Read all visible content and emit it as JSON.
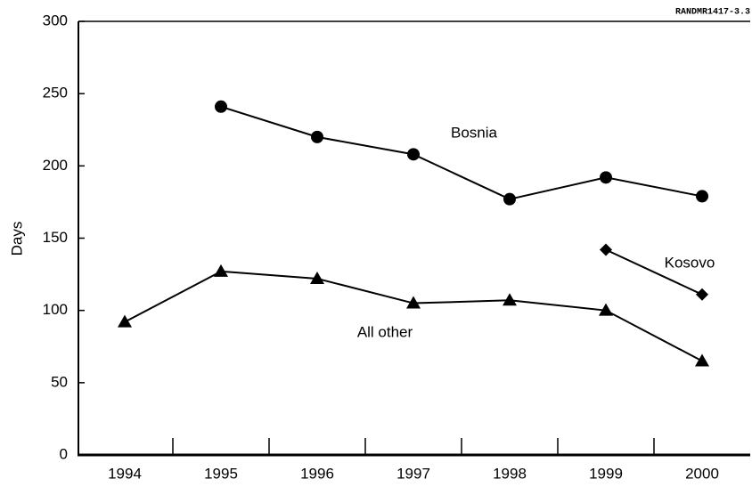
{
  "chart_data": {
    "type": "line",
    "source": "RANDMR1417-3.3",
    "ylabel": "Days",
    "categories": [
      "1994",
      "1995",
      "1996",
      "1997",
      "1998",
      "1999",
      "2000"
    ],
    "series": [
      {
        "name": "Bosnia",
        "color": "#000000",
        "marker": "circle",
        "values": [
          null,
          241,
          220,
          208,
          177,
          192,
          179
        ]
      },
      {
        "name": "Kosovo",
        "color": "#000000",
        "marker": "diamond",
        "values": [
          null,
          null,
          null,
          null,
          null,
          142,
          111
        ]
      },
      {
        "name": "All other",
        "color": "#000000",
        "marker": "triangle",
        "values": [
          92,
          127,
          122,
          105,
          107,
          100,
          65
        ]
      }
    ],
    "ylim": [
      0,
      300
    ],
    "yticks": [
      0,
      50,
      100,
      150,
      200,
      250,
      300
    ],
    "grid": false,
    "legend": false
  }
}
